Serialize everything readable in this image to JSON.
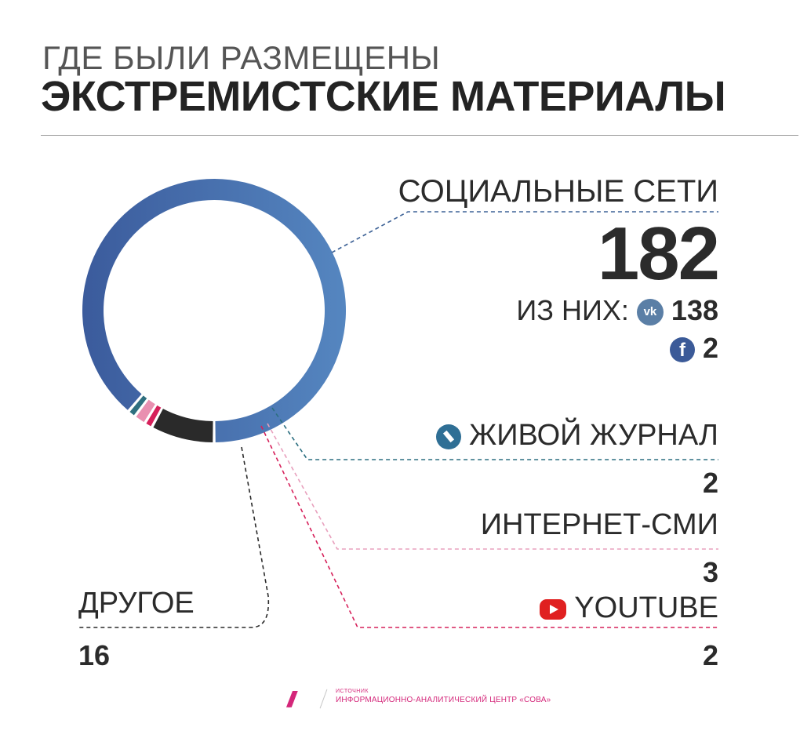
{
  "header": {
    "line1": "ГДЕ БЫЛИ РАЗМЕЩЕНЫ",
    "line2": "ЭКСТРЕМИСТСКИЕ МАТЕРИАЛЫ"
  },
  "chart_data": {
    "type": "pie",
    "style": "donut",
    "series": [
      {
        "label": "СОЦИАЛЬНЫЕ СЕТИ",
        "value": 182,
        "value_text": "182",
        "color": "#4a6fb0"
      },
      {
        "label": "ЖИВОЙ ЖУРНАЛ",
        "value": 2,
        "value_text": "2",
        "color": "#2f6f7f"
      },
      {
        "label": "ИНТЕРНЕТ-СМИ",
        "value": 3,
        "value_text": "3",
        "color": "#e98fb0"
      },
      {
        "label": "YOUTUBE",
        "value": 2,
        "value_text": "2",
        "color": "#d6205a"
      },
      {
        "label": "ДРУГОЕ",
        "value": 16,
        "value_text": "16",
        "color": "#2a2a2a"
      }
    ],
    "social_breakdown": {
      "prefix": "ИЗ НИХ:",
      "vk_value": "138",
      "fb_value": "2"
    }
  },
  "icons": {
    "vk": "vk-icon",
    "facebook": "facebook-icon",
    "livejournal": "livejournal-icon",
    "youtube": "youtube-icon",
    "vk_text": "vk",
    "fb_text": "f"
  },
  "footer": {
    "logo": "///",
    "source_label": "ИСТОЧНИК",
    "source": "ИНФОРМАЦИОННО-АНАЛИТИЧЕСКИЙ ЦЕНТР «СОВА»"
  }
}
